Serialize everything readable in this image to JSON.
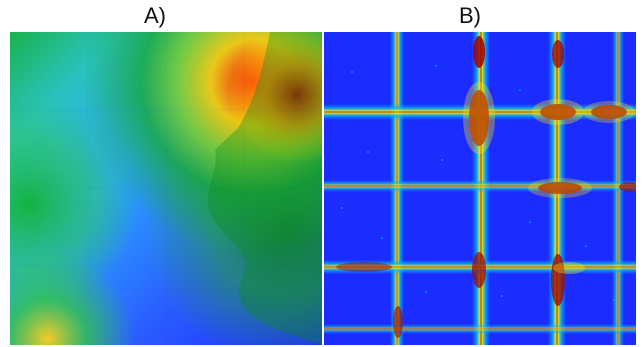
{
  "labels": {
    "a": "A)",
    "b": "B)"
  },
  "panels": {
    "a": {
      "type": "terrain-heatmap",
      "colormap": "jet"
    },
    "b": {
      "type": "cross-pattern-heatmap",
      "colormap": "jet"
    }
  },
  "colors": {
    "deep": "#1f3cff",
    "cyan": "#24b8ff",
    "green": "#1fbf2c",
    "yellow": "#f6ea2a",
    "red": "#ff2b12",
    "darkred": "#8a0000"
  }
}
